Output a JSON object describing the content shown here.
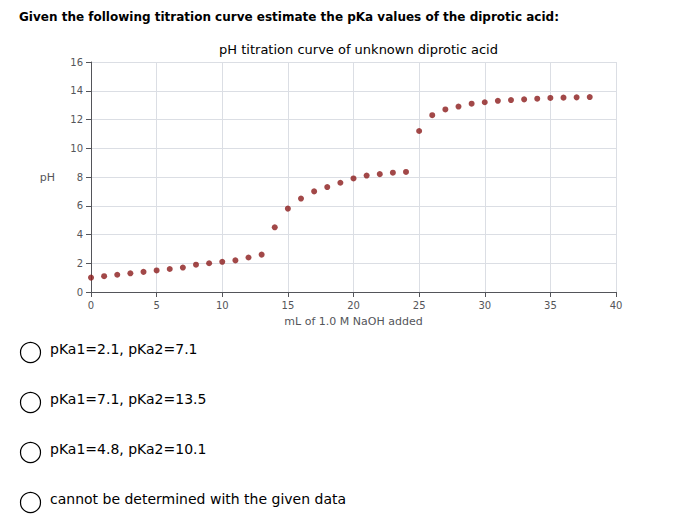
{
  "chart_data": {
    "type": "scatter",
    "subtitle": "Given the following titration curve estimate the pKa values of the diprotic acid:",
    "title": "pH titration curve of unknown diprotic acid",
    "x_label": "mL of 1.0 M NaOH added",
    "y_label": "pH",
    "x": [
      0,
      1,
      2,
      3,
      4,
      5,
      6,
      7,
      8,
      9,
      10,
      11,
      12,
      13,
      14,
      15,
      16,
      17,
      18,
      19,
      20,
      21,
      22,
      23,
      24,
      25,
      26,
      27,
      28,
      29,
      30,
      31,
      32,
      33,
      34,
      35,
      36,
      37,
      38
    ],
    "values": [
      1.0,
      1.1,
      1.2,
      1.3,
      1.4,
      1.5,
      1.6,
      1.7,
      1.9,
      2.0,
      2.1,
      2.2,
      2.4,
      2.6,
      4.5,
      5.8,
      6.5,
      7.0,
      7.3,
      7.6,
      7.9,
      8.1,
      8.2,
      8.3,
      8.35,
      11.2,
      12.3,
      12.7,
      12.9,
      13.1,
      13.2,
      13.3,
      13.35,
      13.4,
      13.45,
      13.5,
      13.52,
      13.54,
      13.56
    ],
    "color": "#8B1A1A",
    "xlim": [
      0,
      40
    ],
    "ylim": [
      0,
      16
    ],
    "xticks": [
      0,
      5,
      10,
      15,
      20,
      25,
      30,
      35,
      40
    ],
    "yticks": [
      0,
      2,
      4,
      6,
      8,
      10,
      12,
      14,
      16
    ],
    "grid": true,
    "annotations": [
      "pKa1=2.1, pKa2=7.1",
      "pKa1=7.1, pKa2=13.5",
      "pKa1=4.8, pKa2=10.1",
      "cannot be determined with the given data"
    ]
  }
}
